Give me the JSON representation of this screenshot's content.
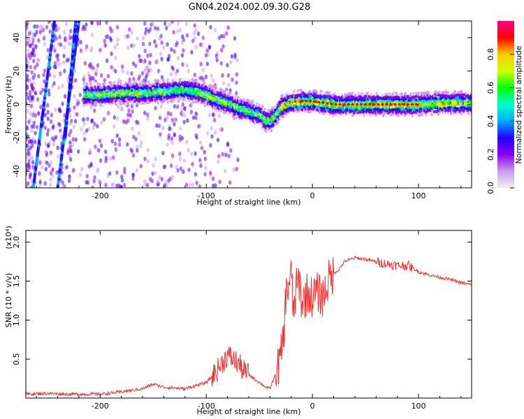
{
  "title": "GN04.2024.002.09.30.G28",
  "chart_data": [
    {
      "type": "heatmap",
      "xlabel": "Height of straight line (km)",
      "ylabel": "Frequency (Hz)",
      "xlim": [
        -270,
        150
      ],
      "ylim": [
        -50,
        50
      ],
      "x_ticks": [
        -200,
        -100,
        0,
        100
      ],
      "y_ticks": [
        -40,
        -20,
        0,
        20,
        40
      ],
      "x_tick_labels": [
        "-200",
        "-100",
        "0",
        "100"
      ],
      "y_tick_labels": [
        "-40",
        "-20",
        "0",
        "20",
        "40"
      ],
      "colorbar": {
        "label": "Normalized spectral amplitude",
        "range": [
          0.0,
          1.0
        ],
        "ticks": [
          0.0,
          0.2,
          0.4,
          0.6,
          0.8
        ],
        "tick_labels": [
          "0.0",
          "0.2",
          "0.4",
          "0.6",
          "0.8"
        ],
        "colors": [
          "#f0f0f0",
          "#cc99ee",
          "#8800ee",
          "#2200ff",
          "#00aaff",
          "#00ffcc",
          "#00ff00",
          "#ccff00",
          "#ffcc00",
          "#ff0000",
          "#ff0088"
        ]
      },
      "ridge": {
        "x": [
          -210,
          -200,
          -180,
          -160,
          -140,
          -120,
          -110,
          -100,
          -90,
          -80,
          -70,
          -60,
          -50,
          -45,
          -40,
          -35,
          -30,
          -25,
          -20,
          -10,
          0,
          10,
          20,
          40,
          60,
          80,
          100,
          120,
          150
        ],
        "freq": [
          6,
          6,
          7,
          7,
          8,
          9,
          8,
          6,
          3,
          1,
          -2,
          -4,
          -6,
          -9,
          -10,
          -7,
          -2,
          0,
          1,
          2,
          2,
          1,
          0,
          0,
          0,
          0,
          0,
          1,
          1
        ]
      }
    },
    {
      "type": "line",
      "xlabel": "Height of straight line (km)",
      "ylabel": "SNR (10 * v/v)",
      "multiplier_label": "(x10⁴)",
      "xlim": [
        -270,
        150
      ],
      "ylim": [
        0,
        2.15
      ],
      "x_ticks": [
        -200,
        -100,
        0,
        100
      ],
      "y_ticks": [
        0.5,
        1.0,
        1.5,
        2.0
      ],
      "x_tick_labels": [
        "-200",
        "-100",
        "0",
        "100"
      ],
      "y_tick_labels": [
        "0.5",
        "1.0",
        "1.5",
        "2.0"
      ],
      "series": [
        {
          "color": "#ee3333",
          "x": [
            -270,
            -250,
            -230,
            -200,
            -180,
            -160,
            -150,
            -140,
            -120,
            -110,
            -100,
            -90,
            -85,
            -80,
            -75,
            -70,
            -65,
            -60,
            -55,
            -50,
            -45,
            -40,
            -35,
            -30,
            -27,
            -25,
            -22,
            -20,
            -18,
            -15,
            -12,
            -10,
            -5,
            0,
            5,
            10,
            15,
            20,
            25,
            30,
            40,
            50,
            60,
            70,
            80,
            90,
            95,
            100,
            110,
            120,
            130,
            140,
            150
          ],
          "y": [
            0.05,
            0.06,
            0.05,
            0.05,
            0.08,
            0.12,
            0.18,
            0.14,
            0.12,
            0.16,
            0.2,
            0.35,
            0.45,
            0.55,
            0.5,
            0.45,
            0.35,
            0.3,
            0.25,
            0.2,
            0.15,
            0.12,
            0.3,
            0.5,
            0.8,
            1.3,
            1.5,
            1.6,
            1.1,
            1.4,
            1.5,
            1.2,
            1.35,
            1.3,
            1.35,
            1.3,
            1.5,
            1.6,
            1.65,
            1.75,
            1.8,
            1.78,
            1.75,
            1.72,
            1.7,
            1.7,
            1.66,
            1.62,
            1.58,
            1.55,
            1.52,
            1.48,
            1.45
          ]
        }
      ]
    }
  ]
}
